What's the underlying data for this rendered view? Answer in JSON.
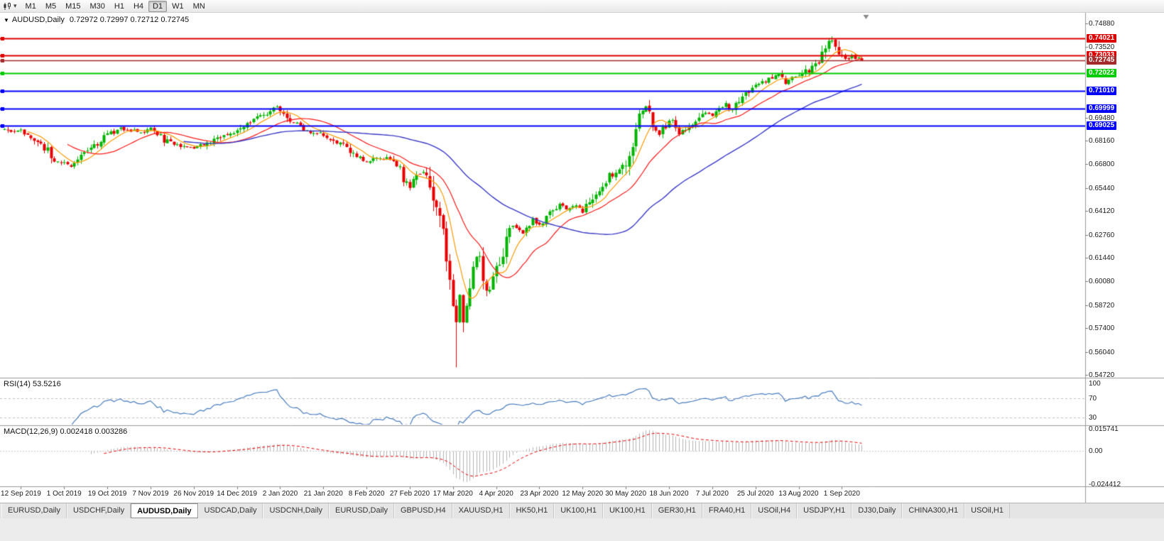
{
  "colors": {
    "candle_up": "#00b400",
    "candle_down": "#e60000",
    "ma_fast_orange": "#ff9a00",
    "ma_mid_red": "#ff1a1a",
    "ma_slow_blue": "#3a3ac8",
    "rsi_line": "#4a7dbf",
    "rsi_dashed_level": "#c0c0c0",
    "macd_histogram": "#b4b4b4",
    "macd_signal": "#e60000",
    "separator": "#9a9a9a",
    "level_red": "#dd0000",
    "level_green": "#00cc00",
    "level_blue": "#0000ff",
    "level_current": "#a52a2a"
  },
  "toolbar": {
    "timeframes": [
      "M1",
      "M5",
      "M15",
      "M30",
      "H1",
      "H4",
      "D1",
      "W1",
      "MN"
    ],
    "active_timeframe": "D1"
  },
  "main_chart": {
    "collapse_icon": "▼",
    "symbol": "AUDUSD,Daily",
    "ohlc_text": "0.72972 0.72997 0.72712 0.72745"
  },
  "rsi_panel": {
    "label": "RSI(14) 53.5216",
    "axis_labels": [
      "100",
      "70",
      "30"
    ]
  },
  "macd_panel": {
    "label": "MACD(12,26,9) 0.002418 0.003286",
    "axis_labels": [
      "0.015741",
      "0.00",
      "-0.024412"
    ]
  },
  "price_axis": {
    "plain_labels": [
      "0.74880",
      "0.73520",
      "0.69480",
      "0.68160",
      "0.66800",
      "0.65440",
      "0.64120",
      "0.62760",
      "0.61440",
      "0.60080",
      "0.58720",
      "0.57400",
      "0.56040",
      "0.54720"
    ]
  },
  "date_axis": {
    "labels": [
      "12 Sep 2019",
      "1 Oct 2019",
      "19 Oct 2019",
      "7 Nov 2019",
      "26 Nov 2019",
      "14 Dec 2019",
      "2 Jan 2020",
      "21 Jan 2020",
      "8 Feb 2020",
      "27 Feb 2020",
      "17 Mar 2020",
      "4 Apr 2020",
      "23 Apr 2020",
      "12 May 2020",
      "30 May 2020",
      "18 Jun 2020",
      "7 Jul 2020",
      "25 Jul 2020",
      "13 Aug 2020",
      "1 Sep 2020"
    ]
  },
  "tabs": {
    "items": [
      "EURUSD,Daily",
      "USDCHF,Daily",
      "AUDUSD,Daily",
      "USDCAD,Daily",
      "USDCNH,Daily",
      "EURUSD,Daily",
      "GBPUSD,H4",
      "XAUUSD,H1",
      "HK50,H1",
      "UK100,H1",
      "UK100,H1",
      "GER30,H1",
      "FRA40,H1",
      "USOil,H4",
      "USDJPY,H1",
      "DJ30,Daily",
      "CHINA300,H1",
      "USOil,H1"
    ],
    "active_index": 2
  },
  "chart_data": {
    "type": "candlestick",
    "symbol": "AUDUSD",
    "timeframe": "Daily",
    "price_axis_range": [
      0.5472,
      0.7488
    ],
    "candle_count": 259,
    "current": {
      "open": 0.72972,
      "high": 0.72997,
      "low": 0.72712,
      "close": 0.72745
    },
    "extremes": {
      "crash_low": {
        "index": 136,
        "price": 0.5515
      },
      "peak_high": {
        "index": 249,
        "price": 0.7414
      }
    },
    "horizontal_levels": [
      {
        "name": "resistance-1",
        "price": 0.74021,
        "label": "0.74021",
        "color": "#dd0000"
      },
      {
        "name": "resistance-2",
        "price": 0.73033,
        "label": "0.73033",
        "color": "#dd0000"
      },
      {
        "name": "current-price",
        "price": 0.72745,
        "label": "0.72745",
        "color": "#a52a2a",
        "current": true
      },
      {
        "name": "support-1",
        "price": 0.72022,
        "label": "0.72022",
        "color": "#00cc00"
      },
      {
        "name": "support-2",
        "price": 0.7101,
        "label": "0.71010",
        "color": "#0000ff"
      },
      {
        "name": "support-3",
        "price": 0.69999,
        "label": "0.69999",
        "color": "#0000ff"
      },
      {
        "name": "support-4",
        "price": 0.69025,
        "label": "0.69025",
        "color": "#0000ff"
      }
    ],
    "moving_averages": [
      {
        "period": 8,
        "type": "sma",
        "color": "#ff9a00"
      },
      {
        "period": 20,
        "type": "sma",
        "color": "#ff1a1a"
      },
      {
        "period": 55,
        "type": "sma",
        "color": "#3a3ac8"
      }
    ],
    "indicators": [
      {
        "name": "RSI",
        "period": 14,
        "current": 53.5216,
        "levels": [
          70,
          30
        ],
        "range": [
          0,
          100
        ]
      },
      {
        "name": "MACD",
        "fast": 12,
        "slow": 26,
        "signal": 9,
        "current_macd": 0.002418,
        "current_signal": 0.003286,
        "axis": [
          0.015741,
          0.0,
          -0.024412
        ]
      }
    ],
    "x_tick_labels": [
      "12 Sep 2019",
      "1 Oct 2019",
      "19 Oct 2019",
      "7 Nov 2019",
      "26 Nov 2019",
      "14 Dec 2019",
      "2 Jan 2020",
      "21 Jan 2020",
      "8 Feb 2020",
      "27 Feb 2020",
      "17 Mar 2020",
      "4 Apr 2020",
      "23 Apr 2020",
      "12 May 2020",
      "30 May 2020",
      "18 Jun 2020",
      "7 Jul 2020",
      "25 Jul 2020",
      "13 Aug 2020",
      "1 Sep 2020"
    ],
    "close_anchors": [
      [
        0,
        0.688
      ],
      [
        3,
        0.6862
      ],
      [
        5,
        0.6868
      ],
      [
        7,
        0.684
      ],
      [
        9,
        0.683
      ],
      [
        11,
        0.679
      ],
      [
        13,
        0.676
      ],
      [
        15,
        0.6705
      ],
      [
        16,
        0.669
      ],
      [
        18,
        0.6702
      ],
      [
        20,
        0.6672
      ],
      [
        22,
        0.67
      ],
      [
        24,
        0.6742
      ],
      [
        26,
        0.677
      ],
      [
        28,
        0.6802
      ],
      [
        31,
        0.685
      ],
      [
        33,
        0.6862
      ],
      [
        35,
        0.6885
      ],
      [
        37,
        0.687
      ],
      [
        40,
        0.6872
      ],
      [
        42,
        0.6858
      ],
      [
        44,
        0.689
      ],
      [
        46,
        0.6855
      ],
      [
        48,
        0.682
      ],
      [
        50,
        0.68
      ],
      [
        52,
        0.6792
      ],
      [
        55,
        0.6782
      ],
      [
        57,
        0.6778
      ],
      [
        59,
        0.6792
      ],
      [
        61,
        0.68
      ],
      [
        63,
        0.6822
      ],
      [
        65,
        0.684
      ],
      [
        68,
        0.6858
      ],
      [
        70,
        0.6872
      ],
      [
        72,
        0.6895
      ],
      [
        74,
        0.692
      ],
      [
        76,
        0.6942
      ],
      [
        78,
        0.6962
      ],
      [
        80,
        0.6995
      ],
      [
        81,
        0.7012
      ],
      [
        83,
        0.6992
      ],
      [
        85,
        0.6952
      ],
      [
        87,
        0.692
      ],
      [
        89,
        0.689
      ],
      [
        92,
        0.687
      ],
      [
        94,
        0.6858
      ],
      [
        96,
        0.6848
      ],
      [
        98,
        0.683
      ],
      [
        100,
        0.6812
      ],
      [
        102,
        0.6788
      ],
      [
        104,
        0.6762
      ],
      [
        106,
        0.6725
      ],
      [
        108,
        0.67
      ],
      [
        109,
        0.6692
      ],
      [
        111,
        0.6712
      ],
      [
        113,
        0.6722
      ],
      [
        115,
        0.671
      ],
      [
        117,
        0.6695
      ],
      [
        118,
        0.6682
      ],
      [
        120,
        0.66
      ],
      [
        122,
        0.6552
      ],
      [
        124,
        0.6618
      ],
      [
        126,
        0.6642
      ],
      [
        128,
        0.6582
      ],
      [
        130,
        0.6452
      ],
      [
        132,
        0.6282
      ],
      [
        134,
        0.6012
      ],
      [
        135,
        0.5882
      ],
      [
        136,
        0.5762
      ],
      [
        137,
        0.5928
      ],
      [
        138,
        0.5802
      ],
      [
        139,
        0.5898
      ],
      [
        140,
        0.5992
      ],
      [
        141,
        0.6088
      ],
      [
        142,
        0.6142
      ],
      [
        143,
        0.6168
      ],
      [
        144,
        0.6022
      ],
      [
        145,
        0.5982
      ],
      [
        146,
        0.5955
      ],
      [
        147,
        0.6022
      ],
      [
        148,
        0.6068
      ],
      [
        149,
        0.6132
      ],
      [
        150,
        0.6188
      ],
      [
        151,
        0.6248
      ],
      [
        152,
        0.6312
      ],
      [
        153,
        0.6342
      ],
      [
        154,
        0.6322
      ],
      [
        156,
        0.6292
      ],
      [
        158,
        0.6338
      ],
      [
        159,
        0.6362
      ],
      [
        161,
        0.6332
      ],
      [
        163,
        0.6368
      ],
      [
        164,
        0.6402
      ],
      [
        166,
        0.6432
      ],
      [
        167,
        0.6452
      ],
      [
        169,
        0.6422
      ],
      [
        171,
        0.6432
      ],
      [
        172,
        0.6442
      ],
      [
        174,
        0.6412
      ],
      [
        176,
        0.6462
      ],
      [
        178,
        0.6512
      ],
      [
        179,
        0.6542
      ],
      [
        181,
        0.6582
      ],
      [
        182,
        0.6622
      ],
      [
        184,
        0.6632
      ],
      [
        185,
        0.6642
      ],
      [
        186,
        0.6662
      ],
      [
        187,
        0.6682
      ],
      [
        188,
        0.6752
      ],
      [
        189,
        0.6822
      ],
      [
        190,
        0.6892
      ],
      [
        191,
        0.6962
      ],
      [
        192,
        0.6988
      ],
      [
        193,
        0.7002
      ],
      [
        194,
        0.6962
      ],
      [
        195,
        0.6922
      ],
      [
        196,
        0.6852
      ],
      [
        197,
        0.6855
      ],
      [
        198,
        0.6878
      ],
      [
        199,
        0.6902
      ],
      [
        200,
        0.6928
      ],
      [
        201,
        0.6932
      ],
      [
        202,
        0.6895
      ],
      [
        203,
        0.6862
      ],
      [
        204,
        0.6868
      ],
      [
        205,
        0.6872
      ],
      [
        206,
        0.6882
      ],
      [
        207,
        0.6902
      ],
      [
        208,
        0.6922
      ],
      [
        209,
        0.6942
      ],
      [
        210,
        0.6962
      ],
      [
        211,
        0.6982
      ],
      [
        212,
        0.6972
      ],
      [
        213,
        0.6962
      ],
      [
        214,
        0.6978
      ],
      [
        215,
        0.6992
      ],
      [
        216,
        0.7008
      ],
      [
        217,
        0.7022
      ],
      [
        218,
        0.7002
      ],
      [
        219,
        0.6982
      ],
      [
        220,
        0.7022
      ],
      [
        221,
        0.7062
      ],
      [
        222,
        0.7082
      ],
      [
        223,
        0.7092
      ],
      [
        224,
        0.7102
      ],
      [
        225,
        0.7122
      ],
      [
        226,
        0.7142
      ],
      [
        227,
        0.7142
      ],
      [
        228,
        0.7152
      ],
      [
        229,
        0.7162
      ],
      [
        230,
        0.7172
      ],
      [
        231,
        0.7182
      ],
      [
        232,
        0.7188
      ],
      [
        233,
        0.7192
      ],
      [
        234,
        0.7172
      ],
      [
        235,
        0.7152
      ],
      [
        236,
        0.7162
      ],
      [
        237,
        0.7172
      ],
      [
        238,
        0.7175
      ],
      [
        239,
        0.7182
      ],
      [
        240,
        0.7195
      ],
      [
        241,
        0.7212
      ],
      [
        242,
        0.7222
      ],
      [
        243,
        0.7232
      ],
      [
        244,
        0.7255
      ],
      [
        245,
        0.7282
      ],
      [
        246,
        0.7305
      ],
      [
        247,
        0.7332
      ],
      [
        248,
        0.7372
      ],
      [
        249,
        0.7398
      ],
      [
        250,
        0.7368
      ],
      [
        251,
        0.7312
      ],
      [
        252,
        0.7302
      ],
      [
        253,
        0.7282
      ],
      [
        254,
        0.7292
      ],
      [
        255,
        0.7308
      ],
      [
        256,
        0.7292
      ],
      [
        257,
        0.7282
      ],
      [
        258,
        0.72745
      ]
    ]
  }
}
